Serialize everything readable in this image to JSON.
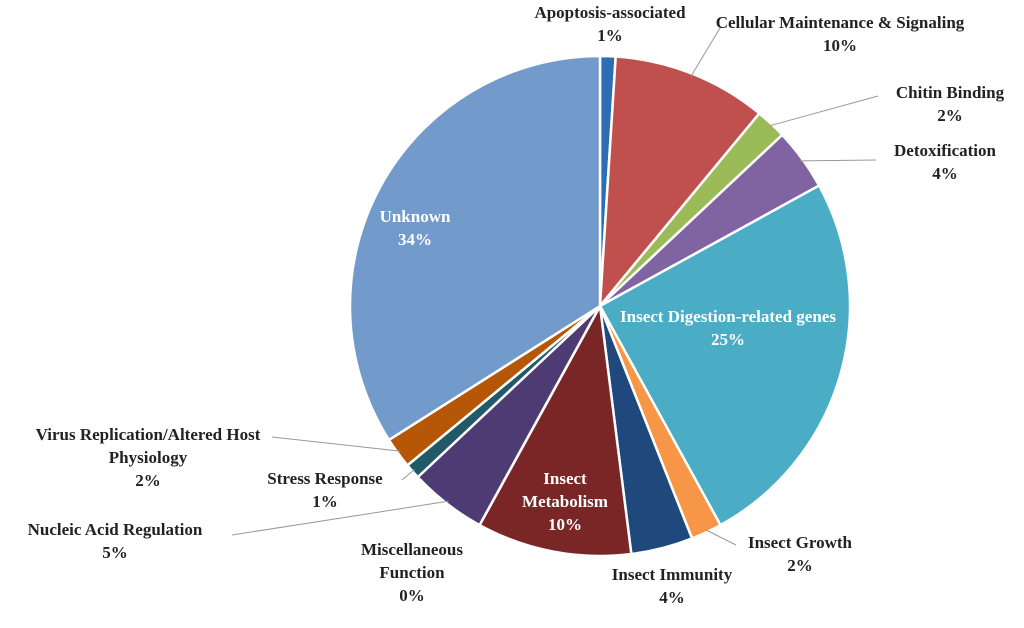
{
  "chart_data": {
    "type": "pie",
    "categories": [
      "Apoptosis-associated",
      "Cellular Maintenance & Signaling",
      "Chitin Binding",
      "Detoxification",
      "Insect Digestion-related genes",
      "Insect Growth",
      "Insect Immunity",
      "Insect Metabolism",
      "Miscellaneous Function",
      "Nucleic Acid Regulation",
      "Stress Response",
      "Virus Replication/Altered Host Physiology",
      "Unknown"
    ],
    "values": [
      1,
      10,
      2,
      4,
      25,
      2,
      4,
      10,
      0,
      5,
      1,
      2,
      34
    ],
    "value_labels": [
      "1%",
      "10%",
      "2%",
      "4%",
      "25%",
      "2%",
      "4%",
      "10%",
      "0%",
      "5%",
      "1%",
      "2%",
      "34%"
    ],
    "colors": [
      "#2e6db4",
      "#c0504d",
      "#9bbb59",
      "#8064a2",
      "#4bacc6",
      "#f79646",
      "#1f497d",
      "#7b2626",
      "#4f3a6b",
      "#4e3b73",
      "#215968",
      "#b65708",
      "#729aca"
    ]
  }
}
